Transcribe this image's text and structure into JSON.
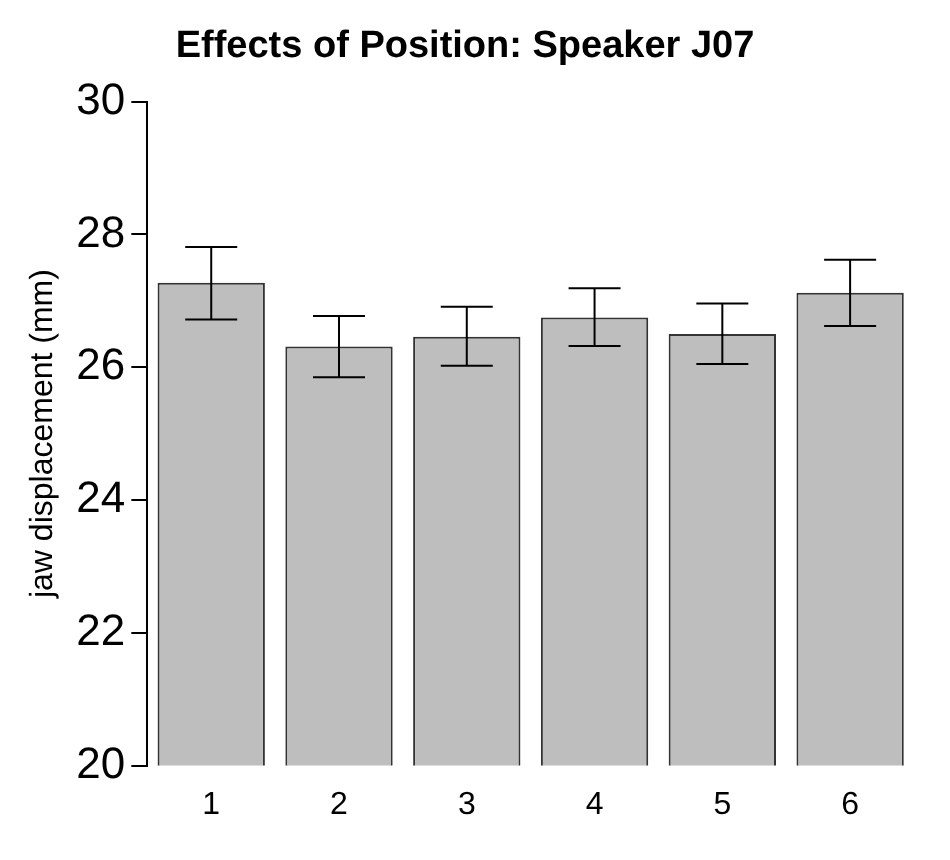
{
  "chart_data": {
    "type": "bar",
    "title": "Effects of Position: Speaker J07",
    "ylabel": "jaw displacement (mm)",
    "categories": [
      "1",
      "2",
      "3",
      "4",
      "5",
      "6"
    ],
    "values": [
      27.27,
      26.31,
      26.46,
      26.75,
      26.5,
      27.12
    ],
    "errors": [
      [
        26.72,
        27.81
      ],
      [
        25.85,
        26.77
      ],
      [
        26.02,
        26.91
      ],
      [
        26.32,
        27.19
      ],
      [
        26.05,
        26.96
      ],
      [
        26.62,
        27.62
      ]
    ],
    "color": "#bebebe",
    "ylim": [
      20,
      30
    ],
    "yticks": [
      20,
      22,
      24,
      26,
      28,
      30
    ],
    "grid": false,
    "legend": false
  }
}
